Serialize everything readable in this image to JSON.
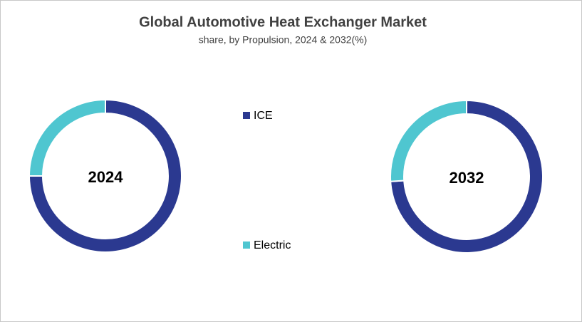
{
  "title": "Global Automotive Heat Exchanger Market",
  "subtitle": "share, by Propulsion, 2024 & 2032(%)",
  "chart_data": [
    {
      "type": "donut",
      "label": "2024",
      "categories": [
        "ICE",
        "Electric"
      ],
      "values": [
        75,
        25
      ],
      "colors": [
        "#2b3990",
        "#4fc6d0"
      ]
    },
    {
      "type": "donut",
      "label": "2032",
      "categories": [
        "ICE",
        "Electric"
      ],
      "values": [
        74,
        26
      ],
      "colors": [
        "#2b3990",
        "#4fc6d0"
      ]
    }
  ]
}
